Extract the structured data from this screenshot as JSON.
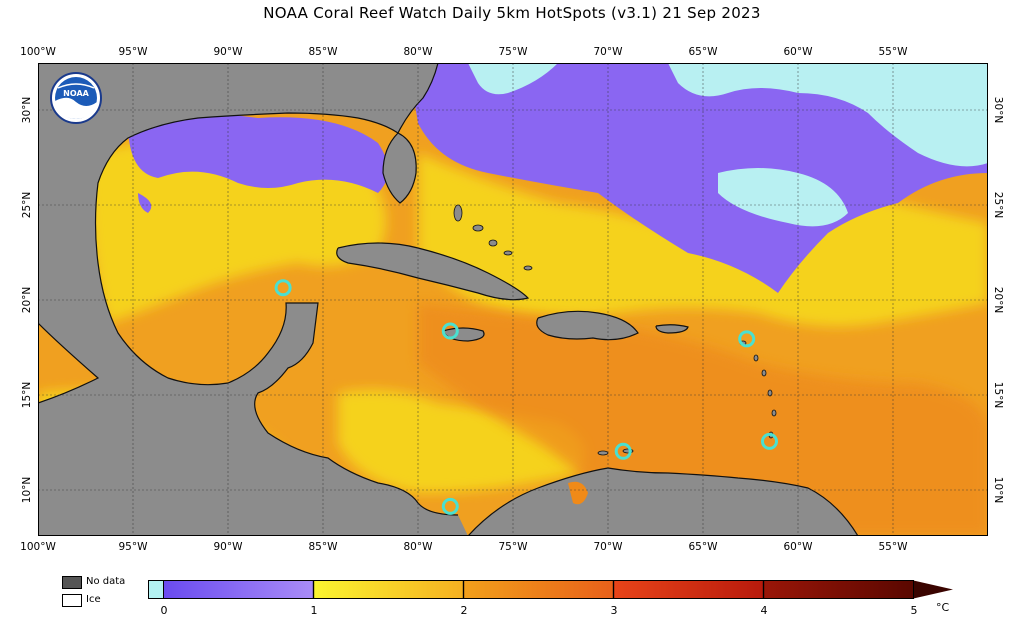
{
  "title": "NOAA Coral Reef Watch Daily 5km HotSpots  (v3.1)   21 Sep 2023",
  "logo": {
    "text": "NOAA"
  },
  "lon_ticks": [
    "100°W",
    "95°W",
    "90°W",
    "85°W",
    "80°W",
    "75°W",
    "70°W",
    "65°W",
    "60°W",
    "55°W"
  ],
  "lat_ticks": [
    "30°N",
    "25°N",
    "20°N",
    "15°N",
    "10°N"
  ],
  "legend": {
    "no_data": "No data",
    "ice": "Ice"
  },
  "colorbar": {
    "ticks": [
      "0",
      "1",
      "2",
      "3",
      "4",
      "5"
    ],
    "unit": "°C",
    "colors": {
      "below_zero": "#b3f2f2",
      "purple_a": "#7a5cf0",
      "purple_b": "#9b7cf5",
      "yellow_a": "#f7f22e",
      "yellow_b": "#f5c021",
      "orange_a": "#f2a11b",
      "orange_b": "#ee7a18",
      "red_a": "#e84419",
      "red_b": "#c41f0e",
      "dark_a": "#8e1306",
      "dark_b": "#5a0700"
    }
  },
  "colors": {
    "land": "#8c8c8c",
    "ice": "#b8f0f2",
    "purple": "#8a66f2",
    "yellow": "#f5d21e",
    "orange": "#f0a020",
    "deep_orange": "#ee8a1e",
    "marker": "#4ae0d0"
  },
  "markers": [
    {
      "name": "yucatan-marker",
      "lon": -87.1,
      "lat": 20.6
    },
    {
      "name": "jamaica-marker",
      "lon": -78.3,
      "lat": 18.4
    },
    {
      "name": "panama-marker",
      "lon": -78.3,
      "lat": 9.5
    },
    {
      "name": "curacao-marker",
      "lon": -69.2,
      "lat": 12.3
    },
    {
      "name": "virgin-islands-marker",
      "lon": -62.7,
      "lat": 18.0
    },
    {
      "name": "grenada-marker",
      "lon": -61.5,
      "lat": 12.8
    }
  ],
  "extent": {
    "lon_min": -100,
    "lon_max": -50,
    "lat_min": 8,
    "lat_max": 32
  }
}
